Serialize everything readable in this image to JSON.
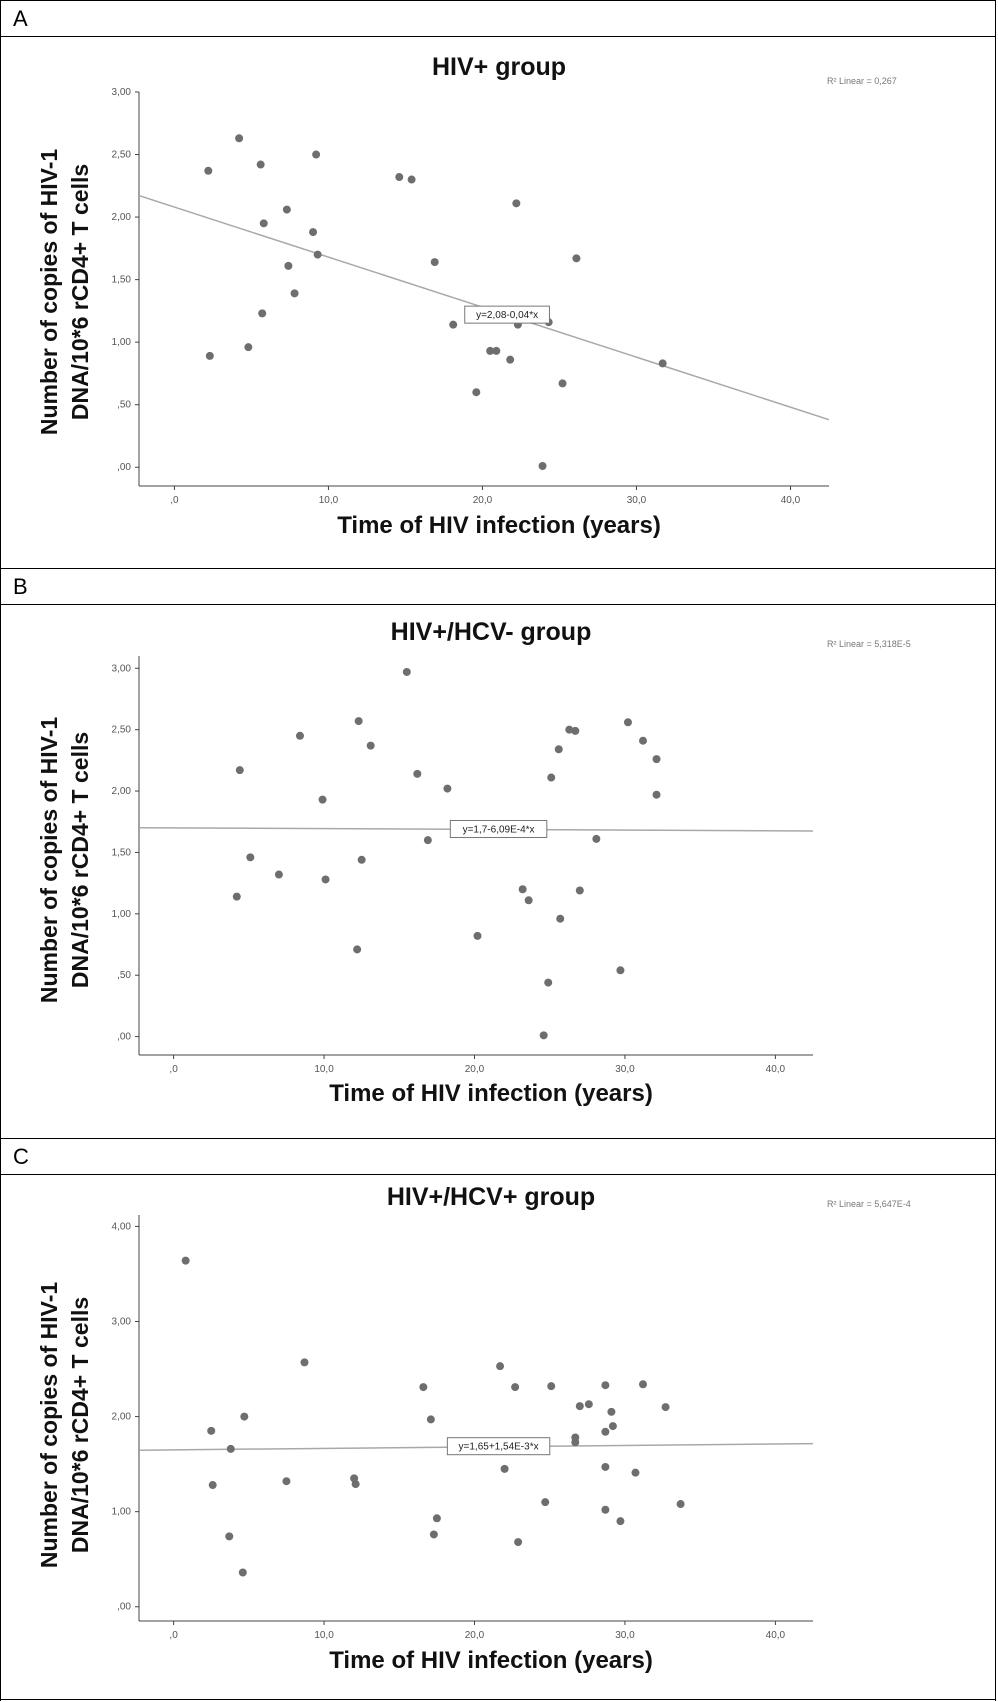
{
  "chart_data": [
    {
      "panel": "A",
      "type": "scatter",
      "title": "HIV+ group",
      "xlabel": "Time of HIV infection (years)",
      "ylabel": [
        "Number of copies of HIV-1",
        "DNA/10*6 rCD4+ T cells"
      ],
      "xlim": [
        -2.3,
        42.5
      ],
      "ylim": [
        -0.15,
        3.0
      ],
      "xticks": [
        0,
        10,
        20,
        30,
        40
      ],
      "xtick_labels": [
        ",0",
        "10,0",
        "20,0",
        "30,0",
        "40,0"
      ],
      "yticks": [
        0,
        0.5,
        1,
        1.5,
        2,
        2.5,
        3
      ],
      "ytick_labels": [
        ",00",
        ",50",
        "1,00",
        "1,50",
        "2,00",
        "2,50",
        "3,00"
      ],
      "r2_label": "R² Linear = 0,267",
      "equation": "y=2,08-0,04*x",
      "fit": {
        "intercept": 2.08,
        "slope": -0.04
      },
      "grid": false,
      "points": [
        [
          2.2,
          2.37
        ],
        [
          4.2,
          2.63
        ],
        [
          5.6,
          2.42
        ],
        [
          9.2,
          2.5
        ],
        [
          2.3,
          0.89
        ],
        [
          4.8,
          0.96
        ],
        [
          5.8,
          1.95
        ],
        [
          7.3,
          2.06
        ],
        [
          9.0,
          1.88
        ],
        [
          9.3,
          1.7
        ],
        [
          7.4,
          1.61
        ],
        [
          7.8,
          1.39
        ],
        [
          5.7,
          1.23
        ],
        [
          14.6,
          2.32
        ],
        [
          15.4,
          2.3
        ],
        [
          16.9,
          1.64
        ],
        [
          22.2,
          2.11
        ],
        [
          26.1,
          1.67
        ],
        [
          18.1,
          1.14
        ],
        [
          20.5,
          0.93
        ],
        [
          20.9,
          0.93
        ],
        [
          21.8,
          0.86
        ],
        [
          22.3,
          1.14
        ],
        [
          24.3,
          1.16
        ],
        [
          19.6,
          0.6
        ],
        [
          25.2,
          0.67
        ],
        [
          31.7,
          0.83
        ],
        [
          23.9,
          0.01
        ]
      ]
    },
    {
      "panel": "B",
      "type": "scatter",
      "title": "HIV+/HCV- group",
      "xlabel": "Time of HIV infection (years)",
      "ylabel": [
        "Number of copies of HIV-1",
        "DNA/10*6 rCD4+ T cells"
      ],
      "xlim": [
        -2.3,
        42.5
      ],
      "ylim": [
        -0.15,
        3.1
      ],
      "xticks": [
        0,
        10,
        20,
        30,
        40
      ],
      "xtick_labels": [
        ",0",
        "10,0",
        "20,0",
        "30,0",
        "40,0"
      ],
      "yticks": [
        0,
        0.5,
        1,
        1.5,
        2,
        2.5,
        3
      ],
      "ytick_labels": [
        ",00",
        ",50",
        "1,00",
        "1,50",
        "2,00",
        "2,50",
        "3,00"
      ],
      "r2_label": "R² Linear = 5,318E-5",
      "equation": "y=1,7-6,09E-4*x",
      "fit": {
        "intercept": 1.7,
        "slope": -0.000609
      },
      "grid": false,
      "points": [
        [
          15.5,
          2.97
        ],
        [
          12.3,
          2.57
        ],
        [
          8.4,
          2.45
        ],
        [
          13.1,
          2.37
        ],
        [
          4.4,
          2.17
        ],
        [
          16.2,
          2.14
        ],
        [
          18.2,
          2.02
        ],
        [
          9.9,
          1.93
        ],
        [
          5.1,
          1.46
        ],
        [
          7.0,
          1.32
        ],
        [
          10.1,
          1.28
        ],
        [
          12.5,
          1.44
        ],
        [
          4.2,
          1.14
        ],
        [
          12.2,
          0.71
        ],
        [
          16.9,
          1.6
        ],
        [
          20.2,
          0.82
        ],
        [
          23.2,
          1.2
        ],
        [
          23.6,
          1.11
        ],
        [
          24.9,
          0.44
        ],
        [
          24.6,
          0.01
        ],
        [
          25.1,
          2.11
        ],
        [
          25.6,
          2.34
        ],
        [
          26.3,
          2.5
        ],
        [
          26.7,
          2.49
        ],
        [
          25.7,
          0.96
        ],
        [
          27.0,
          1.19
        ],
        [
          28.1,
          1.61
        ],
        [
          29.7,
          0.54
        ],
        [
          30.2,
          2.56
        ],
        [
          31.2,
          2.41
        ],
        [
          32.1,
          2.26
        ],
        [
          32.1,
          1.97
        ]
      ]
    },
    {
      "panel": "C",
      "type": "scatter",
      "title": "HIV+/HCV+ group",
      "xlabel": "Time of HIV infection (years)",
      "ylabel": [
        "Number of copies of HIV-1",
        "DNA/10*6 rCD4+ T cells"
      ],
      "xlim": [
        -2.3,
        42.5
      ],
      "ylim": [
        -0.15,
        4.12
      ],
      "xticks": [
        0,
        10,
        20,
        30,
        40
      ],
      "xtick_labels": [
        ",0",
        "10,0",
        "20,0",
        "30,0",
        "40,0"
      ],
      "yticks": [
        0,
        1,
        2,
        3,
        4
      ],
      "ytick_labels": [
        ",00",
        "1,00",
        "2,00",
        "3,00",
        "4,00"
      ],
      "r2_label": "R² Linear = 5,647E-4",
      "equation": "y=1,65+1,54E-3*x",
      "fit": {
        "intercept": 1.65,
        "slope": 0.00154
      },
      "grid": false,
      "points": [
        [
          0.8,
          3.64
        ],
        [
          2.5,
          1.85
        ],
        [
          4.7,
          2.0
        ],
        [
          3.8,
          1.66
        ],
        [
          2.6,
          1.28
        ],
        [
          3.7,
          0.74
        ],
        [
          4.6,
          0.36
        ],
        [
          7.5,
          1.32
        ],
        [
          8.7,
          2.57
        ],
        [
          12.0,
          1.35
        ],
        [
          12.1,
          1.29
        ],
        [
          16.6,
          2.31
        ],
        [
          17.1,
          1.97
        ],
        [
          17.3,
          0.76
        ],
        [
          17.5,
          0.93
        ],
        [
          21.7,
          2.53
        ],
        [
          22.0,
          1.45
        ],
        [
          22.7,
          2.31
        ],
        [
          22.9,
          0.68
        ],
        [
          24.7,
          1.1
        ],
        [
          25.1,
          2.32
        ],
        [
          26.7,
          1.78
        ],
        [
          26.7,
          1.73
        ],
        [
          27.0,
          2.11
        ],
        [
          27.6,
          2.13
        ],
        [
          28.7,
          2.33
        ],
        [
          28.7,
          1.84
        ],
        [
          28.7,
          1.47
        ],
        [
          28.7,
          1.02
        ],
        [
          29.1,
          2.05
        ],
        [
          29.2,
          1.9
        ],
        [
          29.7,
          0.9
        ],
        [
          30.7,
          1.41
        ],
        [
          31.2,
          2.34
        ],
        [
          32.7,
          2.1
        ],
        [
          33.7,
          1.08
        ]
      ]
    }
  ]
}
